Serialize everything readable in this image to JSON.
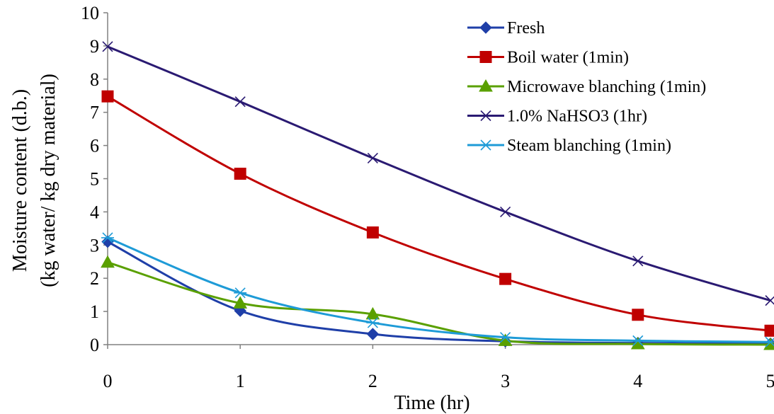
{
  "chart_data": {
    "type": "line",
    "title": "",
    "xlabel": "Time (hr)",
    "ylabel_line1": "Moisture content (d.b.)",
    "ylabel_line2": "(kg water/ kg dry material)",
    "x": [
      0,
      1,
      2,
      3,
      4,
      5
    ],
    "x_ticks": [
      "0",
      "1",
      "2",
      "3",
      "4",
      "5"
    ],
    "y_ticks": [
      "0",
      "1",
      "2",
      "3",
      "4",
      "5",
      "6",
      "7",
      "8",
      "9",
      "10"
    ],
    "xlim": [
      0,
      5
    ],
    "ylim": [
      0,
      10
    ],
    "grid": false,
    "legend_position": "top-right",
    "series": [
      {
        "name": "Fresh",
        "values": [
          3.1,
          1.02,
          0.32,
          0.1,
          0.05,
          0.03
        ],
        "color": "#1f3fa8",
        "marker": "diamond"
      },
      {
        "name": "Boil water (1min)",
        "values": [
          7.48,
          5.15,
          3.38,
          1.98,
          0.9,
          0.42
        ],
        "color": "#c00000",
        "marker": "square"
      },
      {
        "name": "Microwave blanching (1min)",
        "values": [
          2.48,
          1.25,
          0.92,
          0.12,
          0.02,
          0.0
        ],
        "color": "#5aa000",
        "marker": "triangle"
      },
      {
        "name": "1.0% NaHSO3 (1hr)",
        "values": [
          8.98,
          7.32,
          5.62,
          4.0,
          2.52,
          1.33
        ],
        "color": "#2a1a72",
        "marker": "x"
      },
      {
        "name": "Steam blanching (1min)",
        "values": [
          3.22,
          1.56,
          0.66,
          0.22,
          0.12,
          0.08
        ],
        "color": "#1e9bd7",
        "marker": "asterisk"
      }
    ]
  }
}
